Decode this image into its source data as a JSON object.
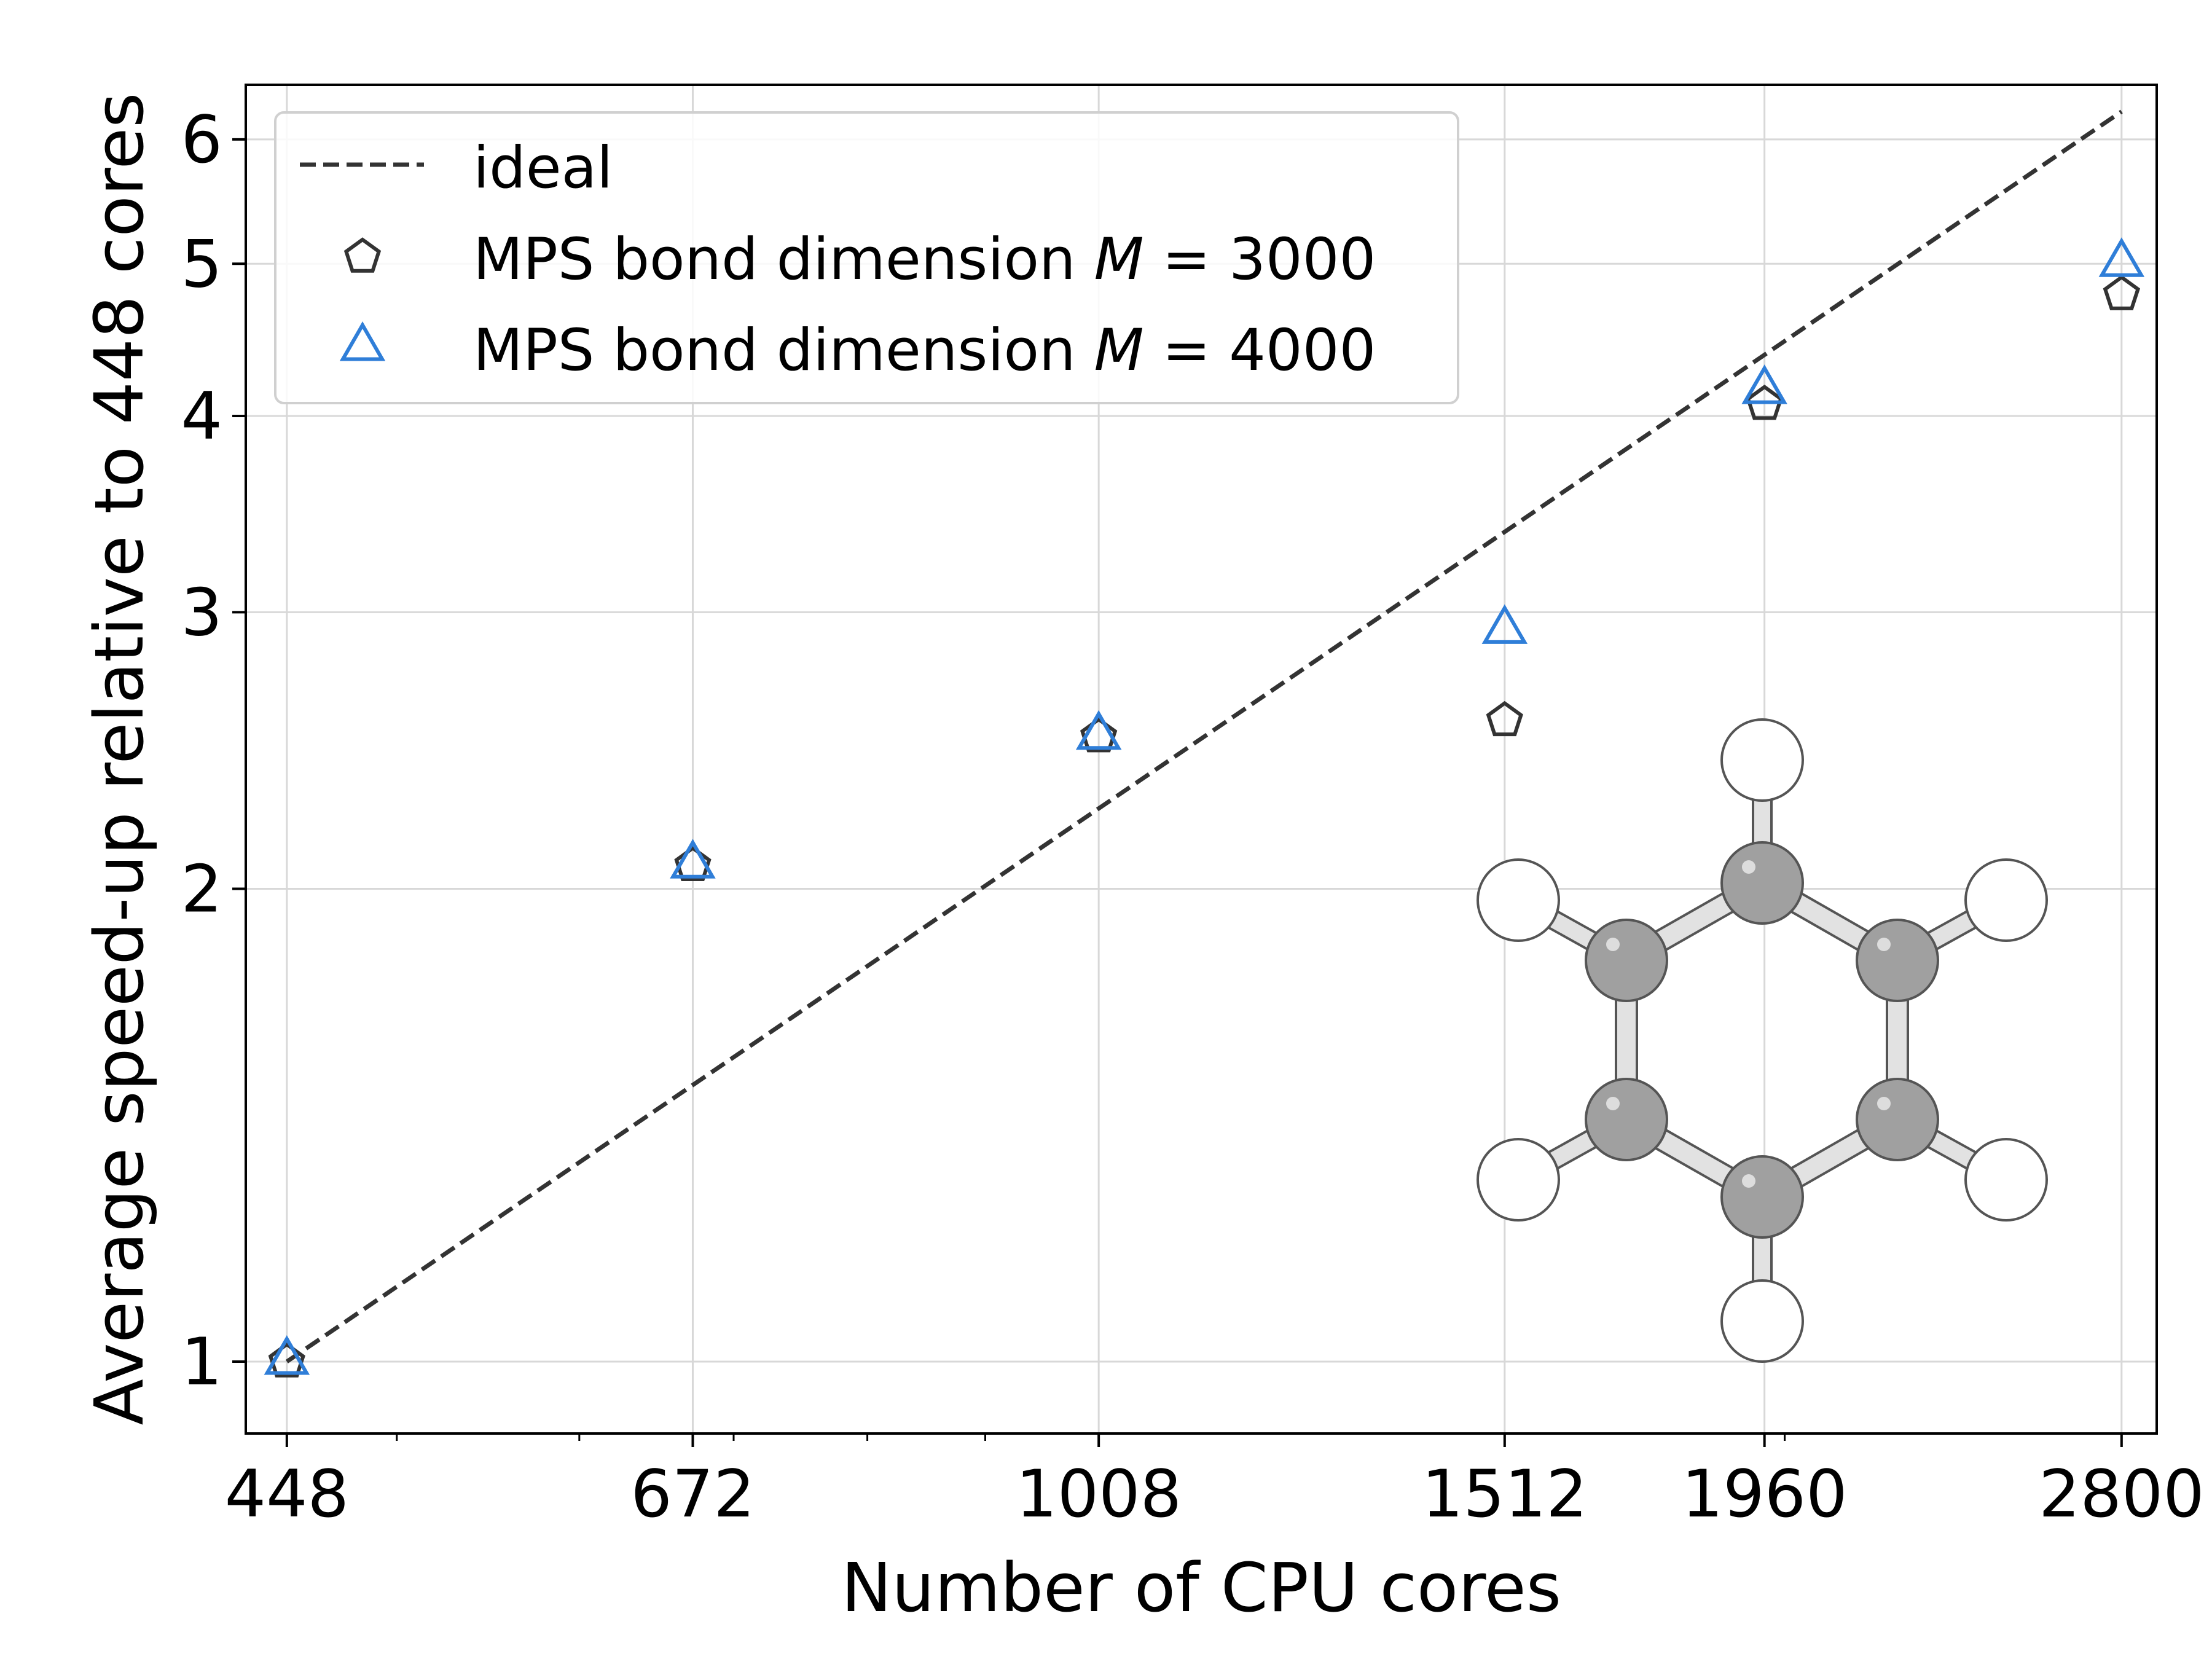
{
  "chart_data": {
    "type": "scatter",
    "xlabel": "Number of CPU cores",
    "ylabel": "Average speed-up relative to 448 cores",
    "xscale": "log",
    "yscale": "log",
    "xlim": [
      430,
      2900
    ],
    "ylim": [
      0.9,
      6.5
    ],
    "xticks": [
      448,
      672,
      1008,
      1512,
      1960,
      2800
    ],
    "xtick_labels": [
      "448",
      "672",
      "1008",
      "1512",
      "1960",
      "2800"
    ],
    "yticks": [
      1,
      2,
      3,
      4,
      5,
      6
    ],
    "ytick_labels": [
      "1",
      "2",
      "3",
      "4",
      "5",
      "6"
    ],
    "grid": true,
    "legend_position": "top-left",
    "ideal": {
      "name": "ideal",
      "x": [
        448,
        2800
      ],
      "y": [
        1.0,
        6.25
      ],
      "color": "#333333",
      "style": "dashed"
    },
    "series": [
      {
        "name_prefix": "MPS bond dimension ",
        "name_var": "M",
        "name_suffix": " = 3000",
        "marker": "pentagon",
        "color": "#333333",
        "x": [
          448,
          672,
          1008,
          1512,
          1960,
          2800
        ],
        "y": [
          1.0,
          2.07,
          2.5,
          2.56,
          4.07,
          4.78
        ]
      },
      {
        "name_prefix": "MPS bond dimension ",
        "name_var": "M",
        "name_suffix": " = 4000",
        "marker": "triangle",
        "color": "#2f7ed8",
        "x": [
          448,
          672,
          1008,
          1512,
          1960,
          2800
        ],
        "y": [
          1.0,
          2.07,
          2.5,
          2.92,
          4.15,
          5.0
        ]
      }
    ],
    "inset": {
      "name": "benzene",
      "carbon_color": "#a0a0a0",
      "hydrogen_color": "#ffffff"
    }
  }
}
